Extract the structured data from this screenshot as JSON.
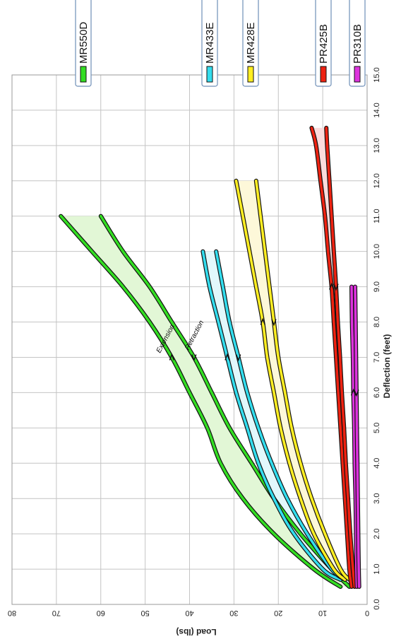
{
  "chart_data": {
    "type": "line",
    "orientation": "rotated-90-clockwise",
    "xlabel": "Deflection (feet)",
    "ylabel": "Load (lbs)",
    "xlim": [
      0,
      15
    ],
    "ylim": [
      0,
      80
    ],
    "x_ticks": [
      "0.0",
      "1.0",
      "2.0",
      "3.0",
      "4.0",
      "5.0",
      "6.0",
      "7.0",
      "8.0",
      "9.0",
      "10.0",
      "11.0",
      "12.0",
      "13.0",
      "14.0",
      "15.0"
    ],
    "y_ticks": [
      "0",
      "10",
      "20",
      "30",
      "40",
      "50",
      "60",
      "70",
      "80"
    ],
    "grid": true,
    "legend_position": "right",
    "annotations": [
      "Extension",
      "Retraction"
    ],
    "series": [
      {
        "name": "MR550D",
        "color": "#33dd22",
        "fill": "#e2f7d6",
        "extension": {
          "x": [
            0.5,
            1.0,
            2.0,
            3.0,
            4.0,
            5.0,
            6.0,
            7.0,
            8.0,
            9.0,
            10.0,
            11.0
          ],
          "y": [
            6,
            12,
            21,
            28,
            33,
            36,
            40,
            44,
            49,
            55,
            62,
            69
          ]
        },
        "retraction": {
          "x": [
            0.5,
            1.0,
            2.0,
            3.0,
            4.0,
            5.0,
            6.0,
            7.0,
            8.0,
            9.0,
            10.0,
            11.0
          ],
          "y": [
            4,
            8,
            15,
            21,
            26,
            31,
            35,
            39,
            44,
            49,
            55,
            60
          ]
        }
      },
      {
        "name": "MR433E",
        "color": "#33ddee",
        "fill": "#e2f8fc",
        "extension": {
          "x": [
            0.7,
            1.0,
            2.0,
            3.0,
            4.0,
            5.0,
            6.0,
            7.0,
            8.0,
            9.0,
            10.0
          ],
          "y": [
            6,
            10,
            16.5,
            21,
            24.5,
            27,
            29.5,
            31.5,
            33.5,
            35.5,
            37
          ]
        },
        "retraction": {
          "x": [
            0.7,
            1.0,
            2.0,
            3.0,
            4.0,
            5.0,
            6.0,
            7.0,
            8.0,
            9.0,
            10.0
          ],
          "y": [
            5,
            8,
            13.5,
            18,
            21.5,
            24.5,
            27,
            29,
            31,
            32.5,
            34
          ]
        }
      },
      {
        "name": "MR428E",
        "color": "#ffee22",
        "fill": "#fdf8d9",
        "extension": {
          "x": [
            0.7,
            1.0,
            2.0,
            3.0,
            4.0,
            5.0,
            6.0,
            7.0,
            8.0,
            9.0,
            10.0,
            11.0,
            12.0
          ],
          "y": [
            5,
            7.5,
            12,
            15,
            17.5,
            19.5,
            21,
            22.5,
            23.5,
            25,
            26.5,
            28,
            29.5
          ]
        },
        "retraction": {
          "x": [
            0.7,
            1.0,
            2.0,
            3.0,
            4.0,
            5.0,
            6.0,
            7.0,
            8.0,
            9.0,
            10.0,
            11.0,
            12.0
          ],
          "y": [
            4,
            6,
            9.5,
            12.5,
            15,
            17,
            18.5,
            20,
            21,
            22,
            23,
            24,
            25
          ]
        }
      },
      {
        "name": "PR425B",
        "color": "#ee2211",
        "fill": "#fbdcdc",
        "extension": {
          "x": [
            0.5,
            1.0,
            2.0,
            3.0,
            4.0,
            5.0,
            6.0,
            7.0,
            8.0,
            9.0,
            10.0,
            11.0,
            12.0,
            13.0,
            13.5
          ],
          "y": [
            3.5,
            4,
            4.5,
            5,
            5.5,
            6,
            6.5,
            7,
            7.5,
            8,
            8.8,
            9.5,
            10.5,
            11.5,
            12.5
          ]
        },
        "retraction": {
          "x": [
            0.5,
            1.0,
            2.0,
            3.0,
            4.0,
            5.0,
            6.0,
            7.0,
            8.0,
            9.0,
            10.0,
            11.0,
            12.0,
            13.0,
            13.5
          ],
          "y": [
            2.8,
            3.2,
            3.8,
            4.3,
            4.8,
            5.2,
            5.7,
            6.1,
            6.6,
            7,
            7.5,
            8,
            8.5,
            9,
            9.2
          ]
        }
      },
      {
        "name": "PR310B",
        "color": "#dd33dd",
        "fill": "#f6dbf6",
        "extension": {
          "x": [
            0.5,
            1.0,
            2.0,
            3.0,
            4.0,
            5.0,
            6.0,
            7.0,
            8.0,
            9.0
          ],
          "y": [
            2.3,
            2.4,
            2.5,
            2.6,
            2.8,
            2.9,
            3.1,
            3.2,
            3.4,
            3.5
          ]
        },
        "retraction": {
          "x": [
            0.5,
            1.0,
            2.0,
            3.0,
            4.0,
            5.0,
            6.0,
            7.0,
            8.0,
            9.0
          ],
          "y": [
            1.8,
            1.9,
            2.0,
            2.1,
            2.2,
            2.3,
            2.4,
            2.5,
            2.6,
            2.7
          ]
        }
      }
    ]
  }
}
